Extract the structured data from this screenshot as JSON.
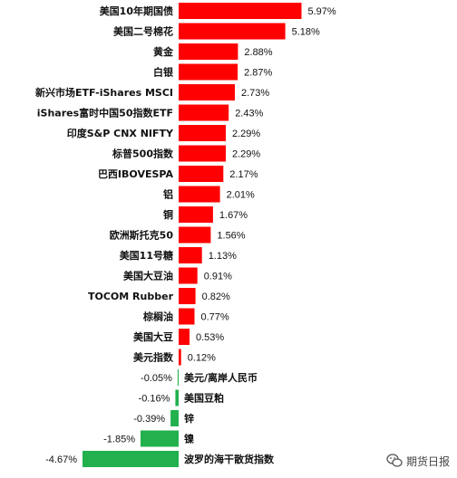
{
  "chart_data": {
    "type": "bar",
    "orientation": "horizontal",
    "categories": [
      "美国10年期国债",
      "美国二号棉花",
      "黄金",
      "白银",
      "新兴市场ETF-iShares MSCI",
      "iShares富时中国50指数ETF",
      "印度S&P CNX NIFTY",
      "标普500指数",
      "巴西IBOVESPA",
      "铝",
      "铜",
      "欧洲斯托克50",
      "美国11号糖",
      "美国大豆油",
      "TOCOM Rubber",
      "棕榈油",
      "美国大豆",
      "美元指数",
      "美元/离岸人民币",
      "美国豆粕",
      "锌",
      "镍",
      "波罗的海干散货指数"
    ],
    "values": [
      5.97,
      5.18,
      2.88,
      2.87,
      2.73,
      2.43,
      2.29,
      2.29,
      2.17,
      2.01,
      1.67,
      1.56,
      1.13,
      0.91,
      0.82,
      0.77,
      0.53,
      0.12,
      -0.05,
      -0.16,
      -0.39,
      -1.85,
      -4.67
    ],
    "value_labels": [
      "5.97%",
      "5.18%",
      "2.88%",
      "2.87%",
      "2.73%",
      "2.43%",
      "2.29%",
      "2.29%",
      "2.17%",
      "2.01%",
      "1.67%",
      "1.56%",
      "1.13%",
      "0.91%",
      "0.82%",
      "0.77%",
      "0.53%",
      "0.12%",
      "-0.05%",
      "-0.16%",
      "-0.39%",
      "-1.85%",
      "-4.67%"
    ],
    "unit": "%",
    "colors": {
      "positive": "#ff0000",
      "negative": "#22b14c"
    },
    "grid": false,
    "legend": "none",
    "title": "",
    "xlabel": "",
    "ylabel": ""
  },
  "watermark": {
    "text": "期货日报",
    "icon": "wechat-icon"
  }
}
